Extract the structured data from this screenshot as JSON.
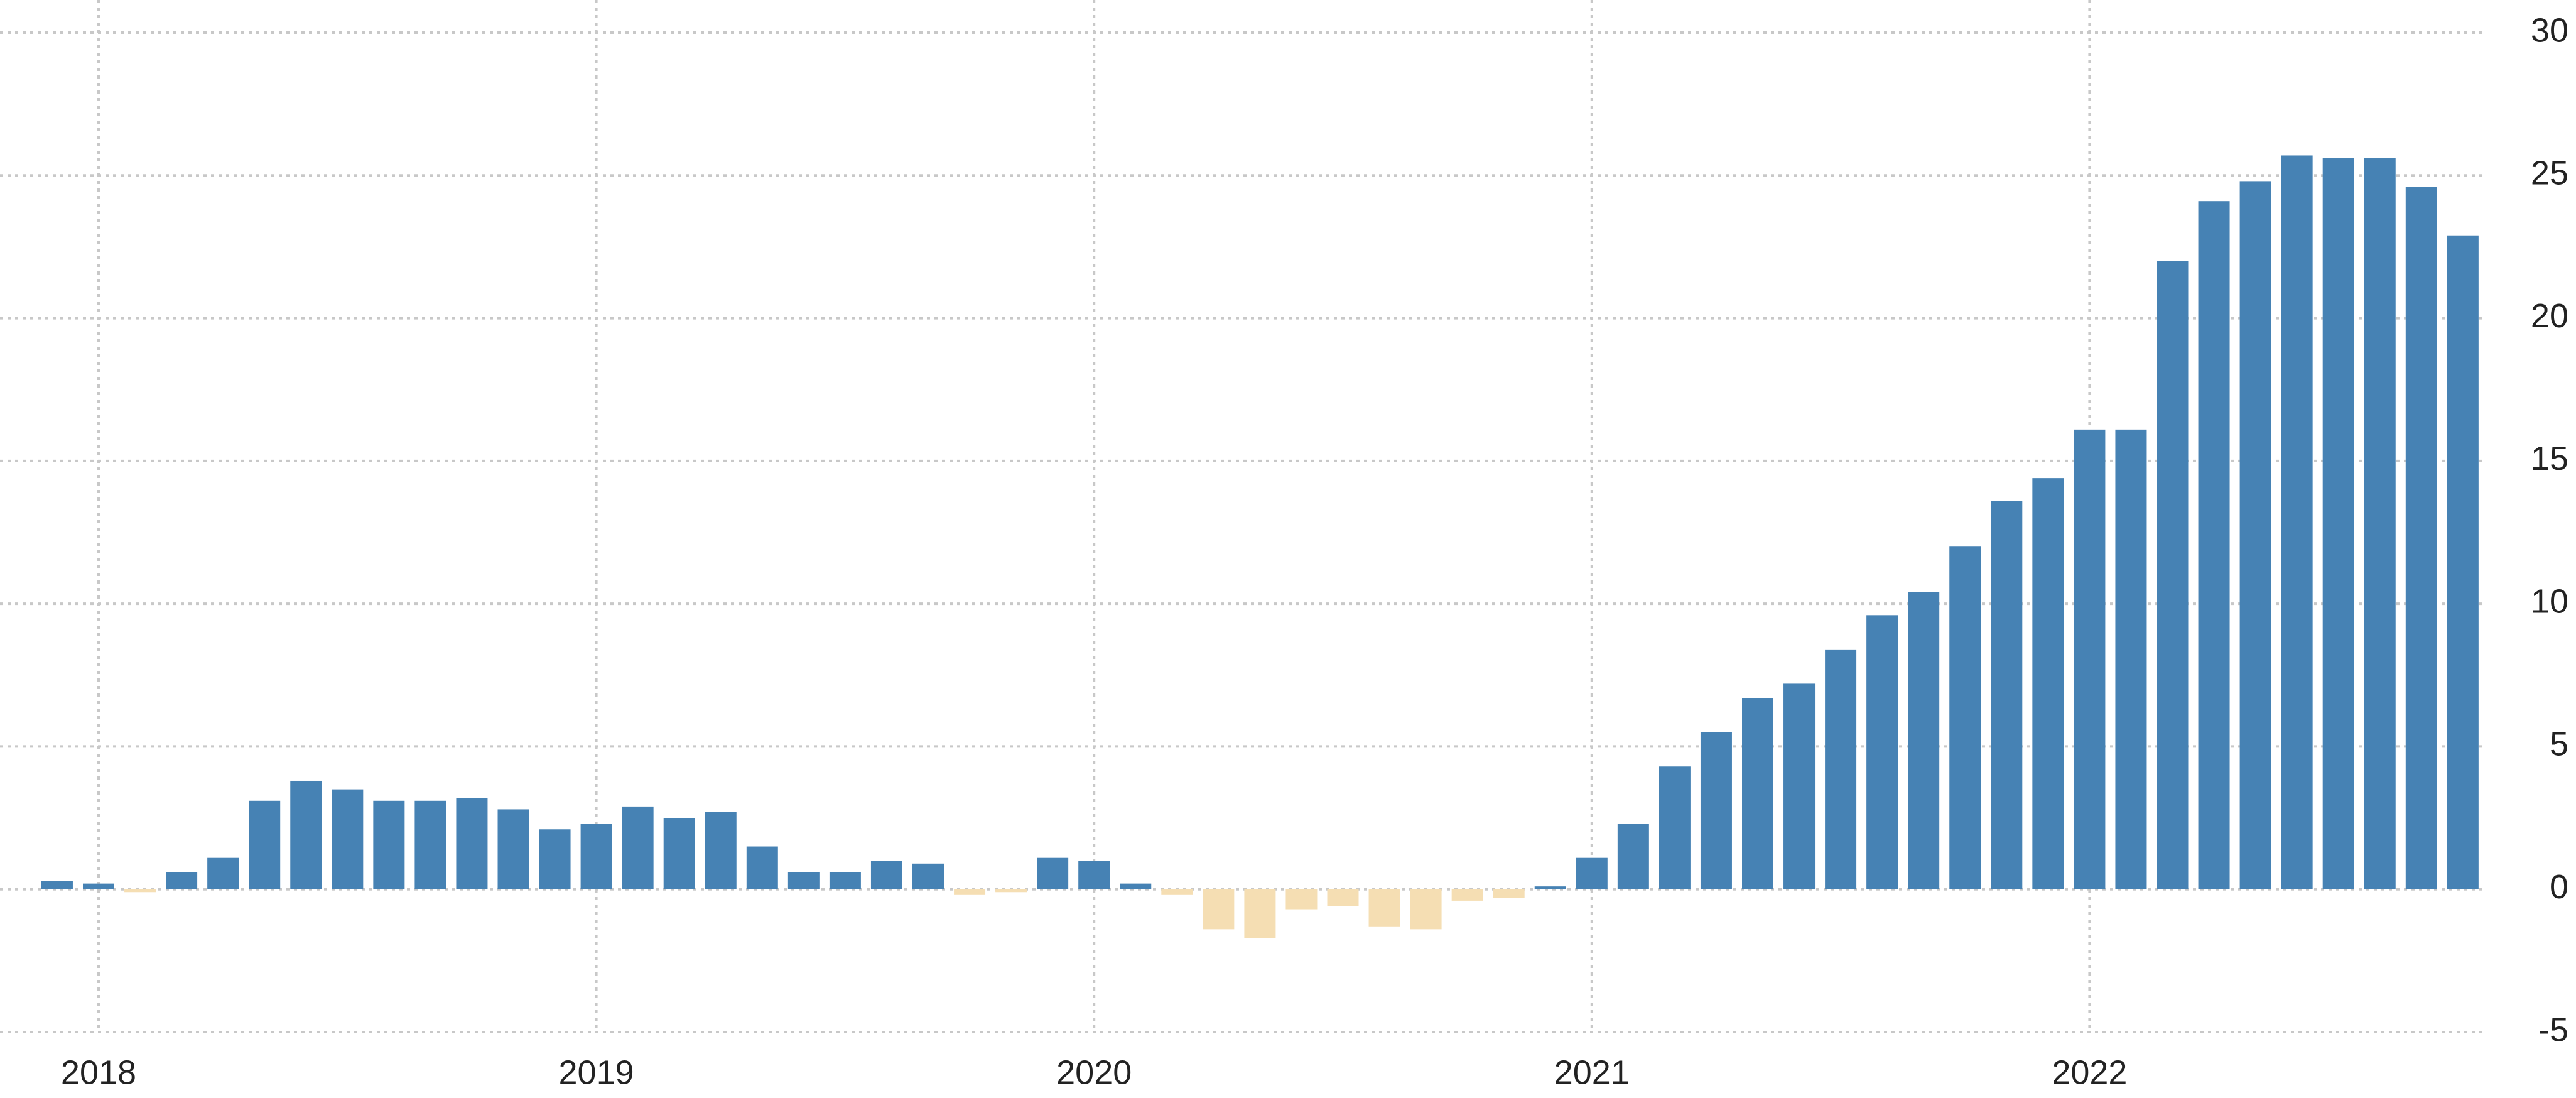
{
  "chart_data": {
    "type": "bar",
    "categories": [
      null,
      "2018",
      null,
      null,
      null,
      null,
      null,
      null,
      null,
      null,
      null,
      null,
      null,
      "2019",
      null,
      null,
      null,
      null,
      null,
      null,
      null,
      null,
      null,
      null,
      null,
      "2020",
      null,
      null,
      null,
      null,
      null,
      null,
      null,
      null,
      null,
      null,
      null,
      "2021",
      null,
      null,
      null,
      null,
      null,
      null,
      null,
      null,
      null,
      null,
      null,
      "2022",
      null,
      null,
      null,
      null,
      null,
      null,
      null,
      null,
      null
    ],
    "values": [
      0.3,
      0.2,
      -0.1,
      0.6,
      1.1,
      3.1,
      3.8,
      3.5,
      3.1,
      3.1,
      3.2,
      2.8,
      2.1,
      2.3,
      2.9,
      2.5,
      2.7,
      1.5,
      0.6,
      0.6,
      1.0,
      0.9,
      -0.2,
      -0.1,
      1.1,
      1.0,
      0.2,
      -0.2,
      -1.4,
      -1.7,
      -0.7,
      -0.6,
      -1.3,
      -1.4,
      -0.4,
      -0.3,
      0.1,
      1.1,
      2.3,
      4.3,
      5.5,
      6.7,
      7.2,
      8.4,
      9.6,
      10.4,
      12.0,
      13.6,
      14.4,
      16.1,
      16.1,
      22.0,
      24.1,
      24.8,
      25.7,
      25.6,
      25.6,
      24.6,
      22.9
    ],
    "color": "#4682b4",
    "negative_color": "#f5deb3",
    "ylim": [
      -5,
      30
    ],
    "yticks": [
      -5,
      0,
      5,
      10,
      15,
      20,
      25,
      30
    ],
    "grid": true
  }
}
